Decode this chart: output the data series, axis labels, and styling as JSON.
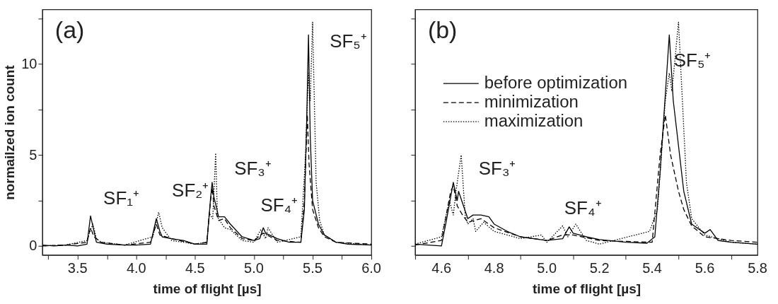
{
  "chart_data": [
    {
      "type": "line",
      "xlabel": "time of flight [µs]",
      "ylabel": "normailzed ion count",
      "xlim": [
        3.2,
        6.0
      ],
      "ylim": [
        -0.5,
        13
      ],
      "xticks": [
        {
          "value": 3.25,
          "label": null
        },
        {
          "value": 3.5,
          "label": "3.5"
        },
        {
          "value": 3.75,
          "label": null
        },
        {
          "value": 4.0,
          "label": "4.0"
        },
        {
          "value": 4.25,
          "label": null
        },
        {
          "value": 4.5,
          "label": "4.5"
        },
        {
          "value": 4.75,
          "label": null
        },
        {
          "value": 5.0,
          "label": "5.0"
        },
        {
          "value": 5.25,
          "label": null
        },
        {
          "value": 5.5,
          "label": "5.5"
        },
        {
          "value": 5.75,
          "label": null
        },
        {
          "value": 6.0,
          "label": "6.0"
        }
      ],
      "yticks": [
        0,
        {
          "value": 2.5,
          "label": null
        },
        5,
        {
          "value": 7.5,
          "label": null
        },
        10,
        {
          "value": 12.5,
          "label": null
        }
      ],
      "grid": false,
      "legend": false,
      "annotations": [
        "(a)",
        "SF₁⁺",
        "SF₂⁺",
        "SF₃⁺",
        "SF₄⁺",
        "SF₅⁺"
      ],
      "series": [
        {
          "color": "#000000",
          "line_style": "solid",
          "x": [
            3.2,
            3.3,
            3.4,
            3.5,
            3.58,
            3.61,
            3.64,
            3.66,
            3.75,
            3.9,
            4.0,
            4.12,
            4.17,
            4.2,
            4.22,
            4.3,
            4.4,
            4.5,
            4.6,
            4.63,
            4.645,
            4.66,
            4.7,
            4.75,
            4.8,
            4.9,
            5.0,
            5.05,
            5.08,
            5.1,
            5.2,
            5.3,
            5.4,
            5.43,
            5.45,
            5.465,
            5.48,
            5.5,
            5.55,
            5.6,
            5.7,
            5.8,
            6.0
          ],
          "values": [
            0.05,
            0,
            0.05,
            0,
            0.1,
            1.65,
            0.8,
            0.2,
            0.1,
            0.05,
            0.05,
            0.1,
            1.5,
            0.8,
            0.5,
            0.4,
            0.3,
            0.1,
            0.1,
            2.5,
            3.5,
            2.7,
            1.6,
            1.6,
            1.2,
            0.5,
            0.3,
            0.4,
            1.0,
            0.7,
            0.4,
            0.2,
            0.2,
            2.0,
            7.0,
            11.6,
            6.0,
            2.5,
            1.2,
            0.6,
            0.2,
            0.1,
            0.05
          ]
        },
        {
          "color": "#000000",
          "line_style": "dashed",
          "x": [
            3.2,
            3.4,
            3.58,
            3.61,
            3.64,
            3.7,
            3.9,
            4.12,
            4.17,
            4.2,
            4.3,
            4.5,
            4.6,
            4.63,
            4.645,
            4.66,
            4.7,
            4.75,
            4.8,
            4.9,
            5.0,
            5.08,
            5.2,
            5.4,
            5.43,
            5.455,
            5.47,
            5.5,
            5.55,
            5.6,
            5.7,
            6.0
          ],
          "values": [
            0,
            0.05,
            0.2,
            1.0,
            0.5,
            0.2,
            0.05,
            0.2,
            1.2,
            0.6,
            0.4,
            0.1,
            0.2,
            2.4,
            3.2,
            2.2,
            1.4,
            1.5,
            1.0,
            0.4,
            0.3,
            0.7,
            0.3,
            0.2,
            2.5,
            7.2,
            4.5,
            2.0,
            1.0,
            0.5,
            0.2,
            0.1
          ]
        },
        {
          "color": "#000000",
          "line_style": "dotted",
          "x": [
            3.2,
            3.4,
            3.58,
            3.6,
            3.63,
            3.66,
            3.7,
            3.9,
            4.14,
            4.19,
            4.22,
            4.3,
            4.5,
            4.6,
            4.62,
            4.65,
            4.675,
            4.69,
            4.75,
            4.8,
            4.9,
            5.0,
            5.06,
            5.1,
            5.12,
            5.2,
            5.4,
            5.44,
            5.465,
            5.48,
            5.5,
            5.53,
            5.56,
            5.6,
            5.7,
            6.0
          ],
          "values": [
            0,
            0.05,
            0.3,
            0.7,
            1.2,
            0.4,
            0.2,
            0.05,
            0.5,
            1.85,
            1.0,
            0.3,
            0.1,
            0.2,
            1.8,
            1.5,
            5.1,
            1.6,
            1.0,
            0.9,
            0.3,
            0.2,
            0.9,
            0.4,
            1.0,
            0.2,
            0.5,
            5.0,
            9.5,
            8.0,
            12.3,
            3.5,
            1.4,
            0.6,
            0.2,
            0.05
          ]
        }
      ]
    },
    {
      "type": "line",
      "xlabel": "time of flight [µs]",
      "xlim": [
        4.5,
        5.8
      ],
      "ylim": [
        -0.5,
        13
      ],
      "tick_labels": "x",
      "xticks": [
        {
          "value": 4.5,
          "label": null
        },
        {
          "value": 4.6,
          "label": "4.6"
        },
        {
          "value": 4.7,
          "label": null
        },
        {
          "value": 4.8,
          "label": "4.8"
        },
        {
          "value": 4.9,
          "label": null
        },
        {
          "value": 5.0,
          "label": "5.0"
        },
        {
          "value": 5.1,
          "label": null
        },
        {
          "value": 5.2,
          "label": "5.2"
        },
        {
          "value": 5.3,
          "label": null
        },
        {
          "value": 5.4,
          "label": "5.4"
        },
        {
          "value": 5.5,
          "label": null
        },
        {
          "value": 5.6,
          "label": "5.6"
        },
        {
          "value": 5.7,
          "label": null
        },
        {
          "value": 5.8,
          "label": "5.8"
        }
      ],
      "yticks": [
        0,
        {
          "value": 2.5,
          "label": null
        },
        5,
        {
          "value": 7.5,
          "label": null
        },
        10,
        {
          "value": 12.5,
          "label": null
        }
      ],
      "grid": false,
      "legend": "top left",
      "annotations": [
        "(b)",
        "SF₃⁺",
        "SF₄⁺",
        "SF₅⁺"
      ],
      "series": [
        {
          "name": "before optimization",
          "color": "#000000",
          "line_style": "solid",
          "x": [
            4.5,
            4.55,
            4.6,
            4.62,
            4.645,
            4.66,
            4.665,
            4.7,
            4.72,
            4.75,
            4.78,
            4.8,
            4.85,
            4.9,
            5.0,
            5.06,
            5.085,
            5.1,
            5.15,
            5.2,
            5.3,
            5.38,
            5.41,
            5.43,
            5.465,
            5.48,
            5.52,
            5.55,
            5.6,
            5.62,
            5.65,
            5.7,
            5.8
          ],
          "values": [
            0.1,
            0.05,
            0.0,
            1.5,
            3.5,
            2.5,
            3.0,
            1.5,
            1.7,
            1.7,
            1.6,
            1.2,
            0.8,
            0.5,
            0.3,
            0.4,
            1.05,
            0.7,
            0.5,
            0.35,
            0.2,
            0.15,
            0.5,
            4.0,
            11.6,
            8.0,
            3.0,
            1.2,
            0.7,
            0.9,
            0.3,
            0.2,
            0.1
          ]
        },
        {
          "name": "minimization",
          "color": "#000000",
          "line_style": "dashed",
          "x": [
            4.5,
            4.6,
            4.635,
            4.645,
            4.66,
            4.68,
            4.7,
            4.75,
            4.8,
            4.9,
            5.0,
            5.06,
            5.1,
            5.2,
            5.4,
            5.43,
            5.45,
            5.47,
            5.5,
            5.52,
            5.55,
            5.6,
            5.7,
            5.8
          ],
          "values": [
            0.05,
            0.3,
            3.0,
            3.3,
            2.2,
            1.7,
            1.3,
            1.5,
            1.0,
            0.5,
            0.3,
            0.6,
            0.6,
            0.3,
            0.2,
            5.0,
            7.2,
            5.0,
            3.0,
            2.0,
            1.1,
            0.5,
            0.3,
            0.2
          ]
        },
        {
          "name": "maximization",
          "color": "#000000",
          "line_style": "dotted",
          "x": [
            4.5,
            4.6,
            4.63,
            4.645,
            4.655,
            4.675,
            4.69,
            4.7,
            4.72,
            4.73,
            4.76,
            4.8,
            4.9,
            4.98,
            5.0,
            5.06,
            5.08,
            5.11,
            5.15,
            5.2,
            5.39,
            5.42,
            5.45,
            5.465,
            5.475,
            5.5,
            5.53,
            5.55,
            5.6,
            5.7,
            5.8
          ],
          "values": [
            0.1,
            0.5,
            2.5,
            1.7,
            3.0,
            5.0,
            1.7,
            1.2,
            1.5,
            0.8,
            1.3,
            0.8,
            0.4,
            0.6,
            0.2,
            1.1,
            0.5,
            1.2,
            0.3,
            0.1,
            0.8,
            2.0,
            8.0,
            9.5,
            8.5,
            12.3,
            3.5,
            1.5,
            0.6,
            0.2,
            0.1
          ]
        }
      ]
    }
  ]
}
